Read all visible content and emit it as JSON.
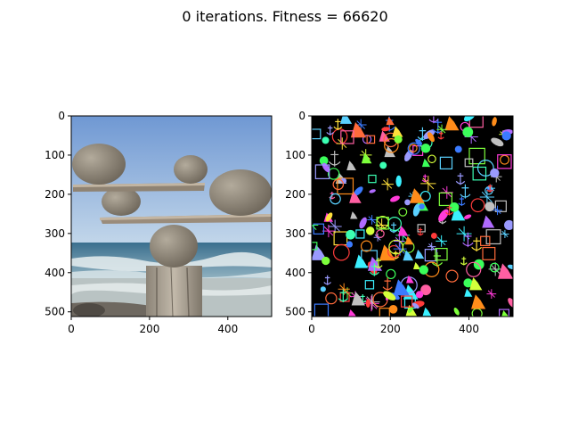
{
  "chart_data": {
    "type": "image",
    "title": "0 iterations. Fitness = 66620",
    "panels": [
      {
        "name": "target-image",
        "content": "photo: balancing rocks on driftwood over beach",
        "xlim": [
          0,
          512
        ],
        "ylim": [
          512,
          0
        ],
        "xticks": [
          0,
          200,
          400
        ],
        "yticks": [
          0,
          100,
          200,
          300,
          400,
          500
        ],
        "xtick_labels": [
          "0",
          "200",
          "400"
        ],
        "ytick_labels": [
          "0",
          "100",
          "200",
          "300",
          "400",
          "500"
        ]
      },
      {
        "name": "evolved-image",
        "content": "black canvas with random colored emoji glyphs (anchors, boots, smileys, boxes)",
        "xlim": [
          0,
          512
        ],
        "ylim": [
          512,
          0
        ],
        "xticks": [
          0,
          200,
          400
        ],
        "yticks": [
          0,
          100,
          200,
          300,
          400,
          500
        ],
        "xtick_labels": [
          "0",
          "200",
          "400"
        ],
        "ytick_labels": [
          "0",
          "100",
          "200",
          "300",
          "400",
          "500"
        ]
      }
    ]
  }
}
